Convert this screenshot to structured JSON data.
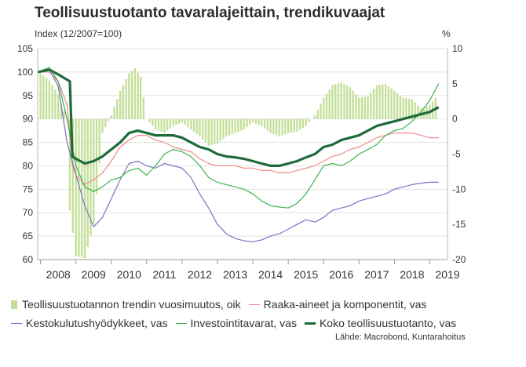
{
  "header": {
    "title": "Teollisuustuotanto tavaralajeittain, trendikuvaajat",
    "left_unit": "Index (12/2007=100)",
    "right_unit": "%"
  },
  "source": "Lähde: Macrobond, Kuntarahoitus",
  "colors": {
    "bars": "#c3df97",
    "raaka": "#f08a8a",
    "kesto": "#7b72c0",
    "invest": "#3cb44b",
    "koko": "#1e6b3a",
    "grid": "#e3e3e3"
  },
  "chart_data": {
    "type": "line",
    "xlabel": "",
    "ylabel": "Index (12/2007=100)",
    "y2label": "%",
    "ylim": [
      60,
      105
    ],
    "y2lim": [
      -20,
      10
    ],
    "yticks": [
      60,
      65,
      70,
      75,
      80,
      85,
      90,
      95,
      100,
      105
    ],
    "y2ticks": [
      -20,
      -15,
      -10,
      -5,
      0,
      5,
      10
    ],
    "xlim": [
      2007.92,
      2019.5
    ],
    "year_labels": [
      "2008",
      "2009",
      "2010",
      "2011",
      "2012",
      "2013",
      "2014",
      "2015",
      "2016",
      "2017",
      "2018",
      "2019"
    ],
    "grid": "horizontal",
    "legend_position": "bottom",
    "legend": [
      "Teollisuustuotannon trendin vuosimuutos, oik",
      "Raaka-aineet ja komponentit, vas",
      "Kestokulutushyödykkeet, vas",
      "Investointitavarat, vas",
      "Koko teollisuustuotanto, vas"
    ],
    "bars_series": {
      "name": "Teollisuustuotannon trendin vuosimuutos, oik",
      "axis": "right",
      "x": [
        2008.0,
        2008.25,
        2008.5,
        2008.75,
        2008.83,
        2009.0,
        2009.25,
        2009.5,
        2009.75,
        2010.0,
        2010.25,
        2010.5,
        2010.67,
        2010.83,
        2011.0,
        2011.25,
        2011.5,
        2011.75,
        2012.0,
        2012.25,
        2012.5,
        2012.75,
        2013.0,
        2013.25,
        2013.5,
        2013.75,
        2014.0,
        2014.25,
        2014.5,
        2014.75,
        2015.0,
        2015.25,
        2015.5,
        2015.75,
        2016.0,
        2016.25,
        2016.5,
        2016.75,
        2017.0,
        2017.25,
        2017.5,
        2017.75,
        2018.0,
        2018.25,
        2018.5,
        2018.75,
        2019.0,
        2019.25
      ],
      "values": [
        6.5,
        5.5,
        3.5,
        0,
        -13,
        -19.5,
        -19.8,
        -15,
        -2,
        0.5,
        4,
        6.5,
        7.2,
        6,
        0,
        -1.5,
        -2,
        -1,
        -0.5,
        -1.5,
        -2.5,
        -3.8,
        -3.5,
        -2.5,
        -2,
        -1.5,
        -0.5,
        -1,
        -2,
        -2.5,
        -2,
        -1.8,
        -1,
        0.5,
        3,
        4.8,
        5.2,
        4.5,
        3,
        3.2,
        4.8,
        5,
        4,
        3,
        2.8,
        1.5,
        2,
        3.5
      ]
    },
    "series": [
      {
        "name": "Raaka-aineet ja komponentit, vas",
        "axis": "left",
        "x": [
          2007.92,
          2008.25,
          2008.5,
          2008.75,
          2008.9,
          2009.0,
          2009.25,
          2009.5,
          2009.75,
          2010.0,
          2010.25,
          2010.5,
          2010.75,
          2011.0,
          2011.25,
          2011.5,
          2011.75,
          2012.0,
          2012.25,
          2012.5,
          2012.75,
          2013.0,
          2013.25,
          2013.5,
          2013.75,
          2014.0,
          2014.25,
          2014.5,
          2014.75,
          2015.0,
          2015.25,
          2015.5,
          2015.75,
          2016.0,
          2016.25,
          2016.5,
          2016.75,
          2017.0,
          2017.25,
          2017.5,
          2017.75,
          2018.0,
          2018.25,
          2018.5,
          2018.75,
          2019.0,
          2019.25
        ],
        "values": [
          100,
          100,
          98,
          93,
          80,
          78,
          76,
          77,
          78.5,
          81,
          84,
          85.5,
          86.5,
          86.5,
          85.5,
          85,
          84,
          83.5,
          83,
          81.5,
          80.5,
          80,
          80,
          80,
          79.5,
          79.5,
          79,
          79,
          78.5,
          78.5,
          79,
          79.5,
          80,
          81,
          82,
          82.5,
          83.5,
          84,
          85,
          86,
          86.5,
          87,
          87,
          87,
          86.5,
          86,
          86
        ]
      },
      {
        "name": "Kestokulutushyödykkeet, vas",
        "axis": "left",
        "x": [
          2007.92,
          2008.25,
          2008.5,
          2008.75,
          2009.0,
          2009.25,
          2009.5,
          2009.75,
          2010.0,
          2010.25,
          2010.5,
          2010.75,
          2011.0,
          2011.25,
          2011.5,
          2011.75,
          2012.0,
          2012.25,
          2012.5,
          2012.75,
          2013.0,
          2013.25,
          2013.5,
          2013.75,
          2014.0,
          2014.25,
          2014.5,
          2014.75,
          2015.0,
          2015.25,
          2015.5,
          2015.75,
          2016.0,
          2016.25,
          2016.5,
          2016.75,
          2017.0,
          2017.25,
          2017.5,
          2017.75,
          2018.0,
          2018.25,
          2018.5,
          2018.75,
          2019.0,
          2019.25
        ],
        "values": [
          100,
          100.5,
          97,
          85,
          78,
          71.5,
          67,
          69,
          73,
          77,
          80.5,
          81,
          80,
          79.5,
          80.5,
          80,
          79.5,
          77.5,
          74,
          71,
          67.5,
          65.5,
          64.5,
          64,
          63.8,
          64.2,
          65,
          65.5,
          66.5,
          67.5,
          68.5,
          68,
          69,
          70.5,
          71,
          71.5,
          72.5,
          73,
          73.5,
          74,
          75,
          75.5,
          76,
          76.3,
          76.5,
          76.5
        ]
      },
      {
        "name": "Investointitavarat, vas",
        "axis": "left",
        "x": [
          2007.92,
          2008.25,
          2008.5,
          2008.75,
          2009.0,
          2009.25,
          2009.5,
          2009.75,
          2010.0,
          2010.25,
          2010.5,
          2010.75,
          2011.0,
          2011.25,
          2011.5,
          2011.75,
          2012.0,
          2012.25,
          2012.5,
          2012.75,
          2013.0,
          2013.25,
          2013.5,
          2013.75,
          2014.0,
          2014.25,
          2014.5,
          2014.75,
          2015.0,
          2015.25,
          2015.5,
          2015.75,
          2016.0,
          2016.25,
          2016.5,
          2016.75,
          2017.0,
          2017.25,
          2017.5,
          2017.75,
          2018.0,
          2018.25,
          2018.5,
          2018.75,
          2019.0,
          2019.25
        ],
        "values": [
          100,
          101,
          98,
          90,
          80,
          75.5,
          74.5,
          75.5,
          77,
          77.5,
          79,
          79.5,
          78,
          80,
          82.5,
          83.5,
          83,
          82,
          80,
          77.5,
          76.5,
          76,
          75.5,
          75,
          74,
          72.5,
          71.5,
          71.2,
          71,
          72,
          74,
          77,
          80,
          80.5,
          80,
          81,
          82.5,
          83.5,
          84.5,
          86.5,
          87.5,
          88,
          89.5,
          91.5,
          94,
          97.5
        ]
      },
      {
        "name": "Koko teollisuustuotanto, vas",
        "axis": "left",
        "x": [
          2007.92,
          2008.25,
          2008.5,
          2008.83,
          2008.9,
          2009.0,
          2009.25,
          2009.5,
          2009.75,
          2010.0,
          2010.25,
          2010.5,
          2010.75,
          2011.0,
          2011.25,
          2011.5,
          2011.75,
          2012.0,
          2012.25,
          2012.5,
          2012.75,
          2013.0,
          2013.25,
          2013.5,
          2013.75,
          2014.0,
          2014.25,
          2014.5,
          2014.75,
          2015.0,
          2015.25,
          2015.5,
          2015.75,
          2016.0,
          2016.25,
          2016.5,
          2016.75,
          2017.0,
          2017.25,
          2017.5,
          2017.75,
          2018.0,
          2018.25,
          2018.5,
          2018.75,
          2019.0,
          2019.25
        ],
        "values": [
          100,
          100.5,
          99.5,
          98,
          82,
          81.5,
          80.5,
          81,
          82,
          83.5,
          85,
          87,
          87.5,
          87,
          86.5,
          86.5,
          86.5,
          86,
          85,
          84,
          83.5,
          82.5,
          82,
          81.8,
          81.5,
          81,
          80.5,
          80,
          80,
          80.5,
          81,
          81.8,
          82.5,
          84,
          84.5,
          85.5,
          86,
          86.5,
          87.5,
          88.5,
          89,
          89.5,
          90,
          90.5,
          91,
          91.5,
          92.5
        ]
      }
    ]
  }
}
